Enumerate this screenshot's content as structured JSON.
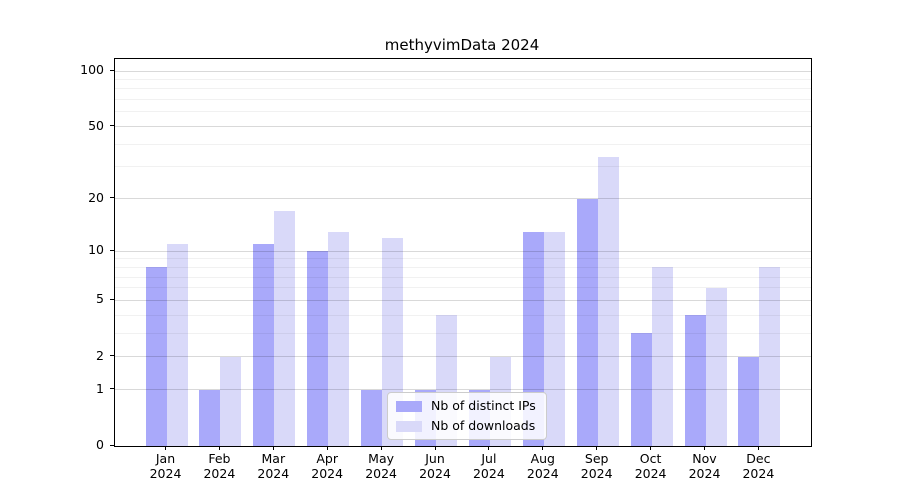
{
  "title": "methyvimData 2024",
  "chart_data": {
    "type": "bar",
    "title": "methyvimData 2024",
    "categories": [
      "Jan",
      "Feb",
      "Mar",
      "Apr",
      "May",
      "Jun",
      "Jul",
      "Aug",
      "Sep",
      "Oct",
      "Nov",
      "Dec"
    ],
    "year": "2024",
    "series": [
      {
        "name": "Nb of distinct IPs",
        "color": "#a9a9fa",
        "values": [
          8,
          1,
          11,
          10,
          1,
          1,
          1,
          13,
          20,
          3,
          4,
          2
        ]
      },
      {
        "name": "Nb of downloads",
        "color": "#d9d9f9",
        "values": [
          11,
          2,
          17,
          13,
          12,
          4,
          2,
          13,
          34,
          8,
          6,
          8
        ]
      }
    ],
    "ylim": [
      0,
      100
    ],
    "y_scale": "log10(value+1)",
    "y_major_ticks": [
      0,
      1,
      2,
      5,
      10,
      20,
      50,
      100
    ],
    "y_minor_ticks": [
      3,
      4,
      6,
      7,
      8,
      9,
      30,
      40,
      60,
      70,
      80,
      90
    ],
    "grid": true,
    "legend_position": "bottom-center"
  },
  "colors": {
    "distinct_ips": "#a9a9fa",
    "downloads": "#d9d9f9",
    "axis": "#000000",
    "grid_major": "#d4d4d4",
    "grid_minor": "#ededed"
  }
}
